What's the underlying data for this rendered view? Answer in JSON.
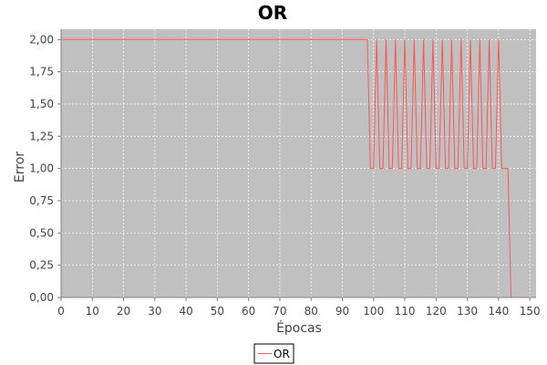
{
  "chart_data": {
    "type": "line",
    "title": "OR",
    "xlabel": "Épocas",
    "ylabel": "Error",
    "xlim": [
      0,
      152
    ],
    "ylim": [
      0,
      2.08
    ],
    "x_ticks": [
      0,
      10,
      20,
      30,
      40,
      50,
      60,
      70,
      80,
      90,
      100,
      110,
      120,
      130,
      140,
      150
    ],
    "x_tick_labels": [
      "0",
      "10",
      "20",
      "30",
      "40",
      "50",
      "60",
      "70",
      "80",
      "90",
      "100",
      "110",
      "120",
      "130",
      "140",
      "150"
    ],
    "y_ticks": [
      0,
      0.25,
      0.5,
      0.75,
      1.0,
      1.25,
      1.5,
      1.75,
      2.0
    ],
    "y_tick_labels": [
      "0,00",
      "0,25",
      "0,50",
      "0,75",
      "1,00",
      "1,25",
      "1,50",
      "1,75",
      "2,00"
    ],
    "grid": true,
    "legend_position": "bottom-center",
    "colors": {
      "plot_background": "#c0c0c0",
      "series_line": "#ff5555",
      "grid": "#ffffff",
      "axis": "#808080"
    },
    "series": [
      {
        "name": "OR",
        "x": [
          0,
          98,
          99,
          100,
          101,
          102,
          103,
          104,
          105,
          106,
          107,
          108,
          109,
          110,
          111,
          112,
          113,
          114,
          115,
          116,
          117,
          118,
          119,
          120,
          121,
          122,
          123,
          124,
          125,
          126,
          127,
          128,
          129,
          130,
          131,
          132,
          133,
          134,
          135,
          136,
          137,
          138,
          139,
          140,
          141,
          142,
          143,
          144
        ],
        "y": [
          2,
          2,
          1,
          1,
          2,
          1,
          1,
          2,
          1,
          1,
          2,
          1,
          1,
          2,
          1,
          1,
          2,
          1,
          1,
          2,
          1,
          1,
          2,
          1,
          1,
          2,
          1,
          1,
          2,
          1,
          1,
          2,
          1,
          1,
          2,
          1,
          1,
          2,
          1,
          1,
          2,
          1,
          1,
          2,
          1,
          1,
          1,
          0
        ]
      }
    ]
  }
}
